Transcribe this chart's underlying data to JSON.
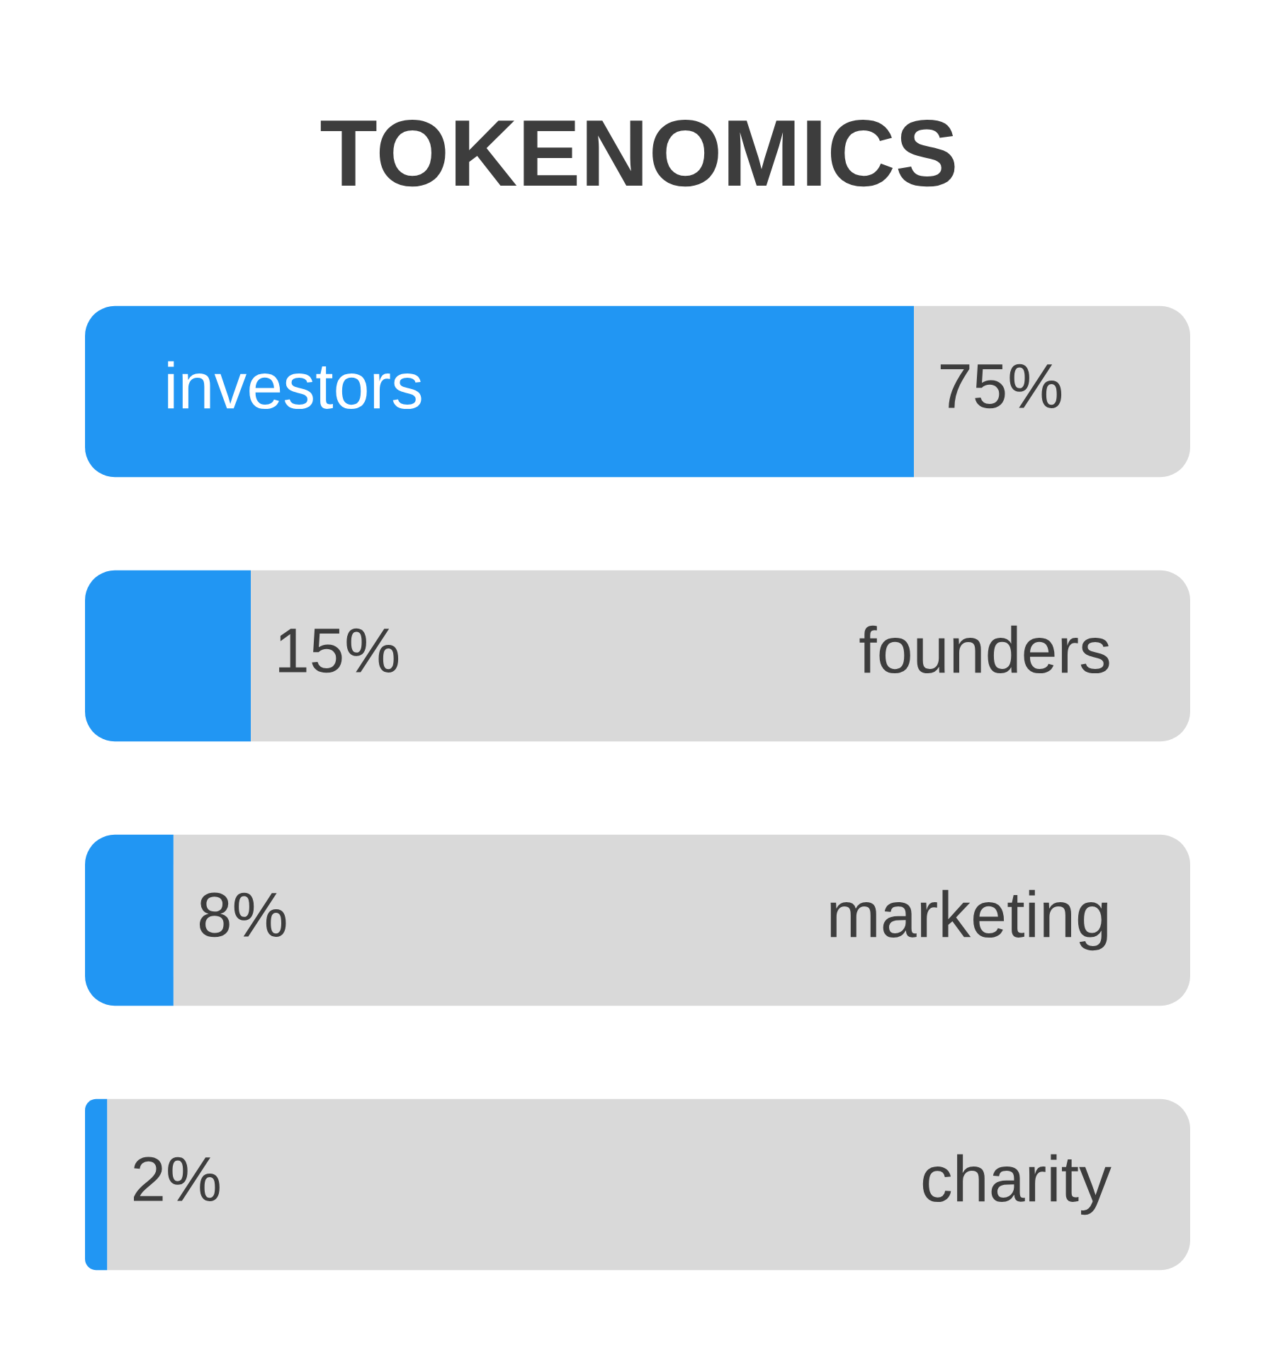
{
  "chart_data": {
    "type": "bar",
    "orientation": "horizontal",
    "stacked": true,
    "title": "TOKENOMICS",
    "categories": [
      "investors",
      "founders",
      "marketing",
      "charity"
    ],
    "series": [
      {
        "color": "#2196f3",
        "values": [
          75,
          15,
          8,
          2
        ],
        "value_labels": [
          "75%",
          "15%",
          "8%",
          "2%"
        ]
      },
      {
        "color": "#d9d9d9",
        "values": [
          25,
          85,
          92,
          98
        ]
      }
    ],
    "xlim": [
      0,
      100
    ],
    "tick_labels": false
  }
}
